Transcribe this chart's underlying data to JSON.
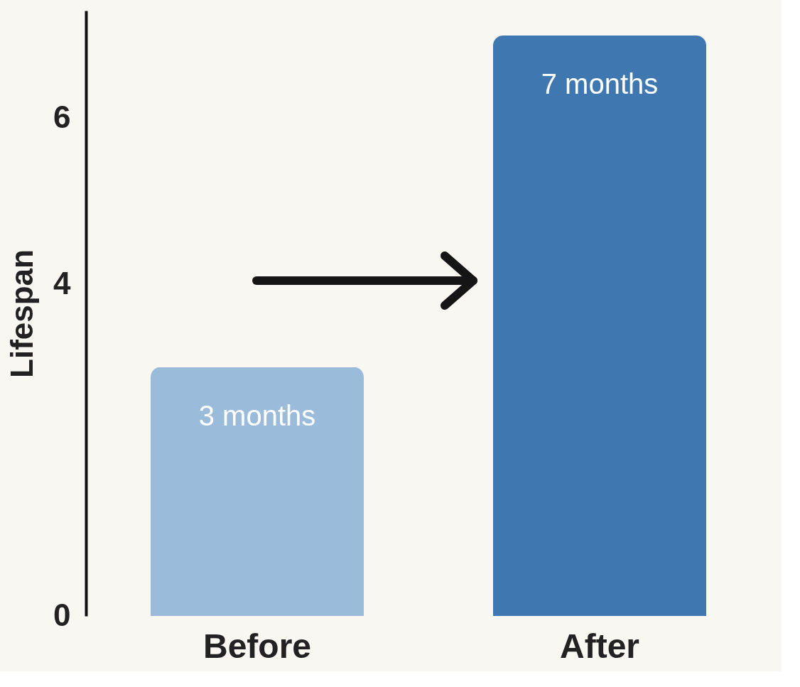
{
  "chart_data": {
    "type": "bar",
    "ylabel": "Lifespan",
    "categories": [
      "Before",
      "After"
    ],
    "values": [
      3,
      7
    ],
    "colors": [
      "#9bbbdb",
      "#3f78b0"
    ],
    "value_labels": [
      "3 months",
      "7 months"
    ],
    "ylim": [
      0,
      7.3
    ],
    "yticks": [
      0,
      4,
      6
    ],
    "grid": false
  }
}
